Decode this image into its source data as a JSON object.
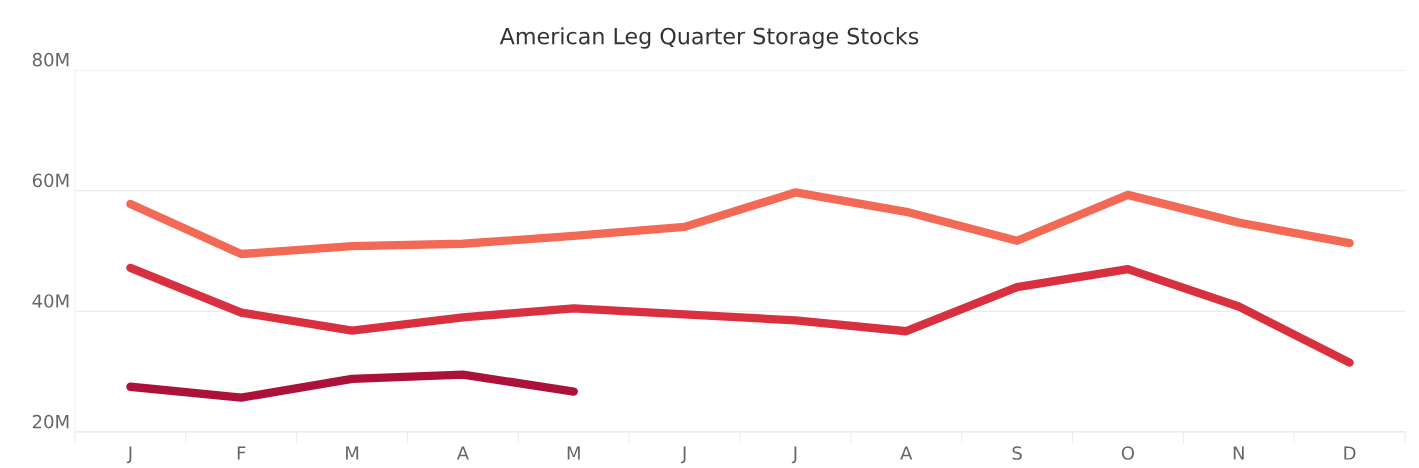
{
  "chart_data": {
    "type": "line",
    "title": "American Leg Quarter Storage Stocks",
    "categories": [
      "J",
      "F",
      "M",
      "A",
      "M",
      "J",
      "J",
      "A",
      "S",
      "O",
      "N",
      "D"
    ],
    "series": [
      {
        "color": "#f26a55",
        "values": [
          57.8,
          49.5,
          50.8,
          51.2,
          52.5,
          54,
          59.7,
          56.5,
          51.7,
          59.3,
          54.7,
          51.3
        ]
      },
      {
        "color": "#d93040",
        "values": [
          47.2,
          39.8,
          36.8,
          39,
          40.5,
          39.5,
          38.5,
          36.7,
          44,
          47,
          40.8,
          31.5
        ]
      },
      {
        "color": "#ac1239",
        "values": [
          27.5,
          25.7,
          28.8,
          29.5,
          26.7,
          null,
          null,
          null,
          null,
          null,
          null,
          null
        ]
      }
    ],
    "ylim": [
      20,
      80
    ],
    "yticks": [
      {
        "value": 20,
        "label": "20M"
      },
      {
        "value": 40,
        "label": "40M"
      },
      {
        "value": 60,
        "label": "60M"
      },
      {
        "value": 80,
        "label": "80M"
      }
    ],
    "grid": "y",
    "legend": false
  }
}
